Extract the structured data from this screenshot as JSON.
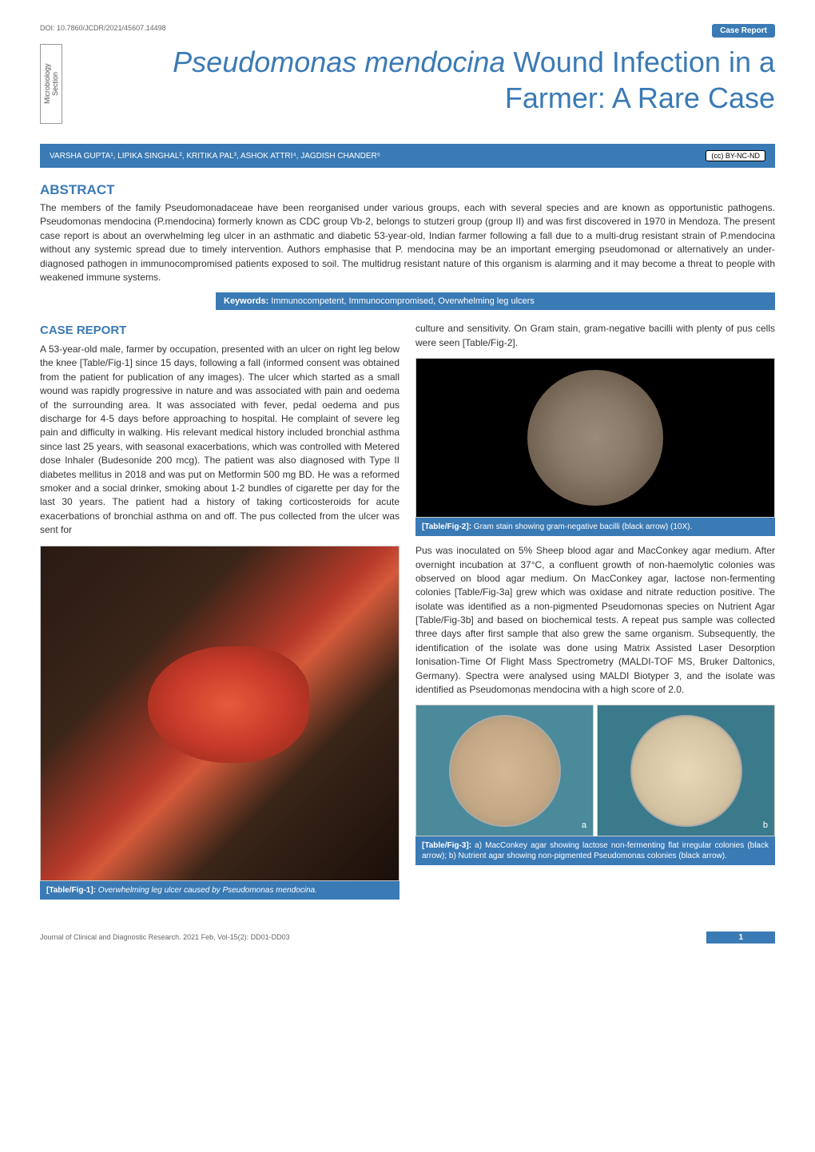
{
  "colors": {
    "accent": "#3a7ab5",
    "text": "#333333",
    "muted": "#666666",
    "bg": "#ffffff"
  },
  "typography": {
    "body_fontsize": 12,
    "title_fontsize": 36,
    "heading_fontsize": 17,
    "caption_fontsize": 10
  },
  "header": {
    "doi": "DOI: 10.7860/JCDR/2021/45607.14498",
    "badge": "Case Report",
    "section_label": "Microbiology Section",
    "title_italic": "Pseudomonas mendocina",
    "title_rest": " Wound Infection in a Farmer: A Rare Case"
  },
  "authors": {
    "line": "VARSHA GUPTA¹, LIPIKA SINGHAL², KRITIKA PAL³, ASHOK ATTRI⁴, JAGDISH CHANDER⁵",
    "license": "(cc) BY-NC-ND"
  },
  "abstract": {
    "heading": "ABSTRACT",
    "text": "The members of the family Pseudomonadaceae have been reorganised under various groups, each with several species and are known as opportunistic pathogens. Pseudomonas mendocina (P.mendocina) formerly known as CDC group Vb-2, belongs to stutzeri group (group II) and was first discovered in 1970 in Mendoza. The present case report is about an overwhelming leg ulcer in an asthmatic and diabetic 53-year-old, Indian farmer following a fall due to a multi-drug resistant strain of P.mendocina without any systemic spread due to timely intervention. Authors emphasise that P. mendocina may be an important emerging pseudomonad or alternatively an under-diagnosed pathogen in immunocompromised patients exposed to soil. The multidrug resistant nature of this organism is alarming and it may become a threat to people with weakened immune systems."
  },
  "keywords": {
    "label": "Keywords:",
    "text": " Immunocompetent, Immunocompromised, Overwhelming leg ulcers"
  },
  "case_report": {
    "heading": "CASE REPORT",
    "col1_p1": "A 53-year-old male, farmer by occupation, presented with an ulcer on right leg below the knee [Table/Fig-1] since 15 days, following a fall (informed consent was obtained from the patient for publication of any images). The ulcer which started as a small wound was rapidly progressive in nature and was associated with pain and oedema of the surrounding area. It was associated with fever, pedal oedema and pus discharge for 4-5 days before approaching to hospital. He complaint of severe leg pain and difficulty in walking. His relevant medical history included bronchial asthma since last 25 years, with seasonal exacerbations, which was controlled with Metered dose Inhaler (Budesonide 200 mcg). The patient was also diagnosed with Type II diabetes mellitus in 2018 and was put on Metformin 500 mg BD. He was a reformed smoker and a social drinker, smoking about 1-2 bundles of cigarette per day for the last 30 years. The patient had a history of taking corticosteroids for acute exacerbations of bronchial asthma on and off. The pus collected from the ulcer was sent for",
    "col2_p1": "culture and sensitivity. On Gram stain, gram-negative bacilli with plenty of pus cells were seen [Table/Fig-2].",
    "col2_p2": "Pus was inoculated on 5% Sheep blood agar and MacConkey agar medium. After overnight incubation at 37°C, a confluent growth of non-haemolytic colonies was observed on blood agar medium. On MacConkey agar, lactose non-fermenting colonies [Table/Fig-3a] grew which was oxidase and nitrate reduction positive. The isolate was identified as a non-pigmented Pseudomonas species on Nutrient Agar [Table/Fig-3b] and based on biochemical tests. A repeat pus sample was collected three days after first sample that also grew the same organism. Subsequently, the identification of the isolate was done using Matrix Assisted Laser Desorption Ionisation-Time Of Flight Mass Spectrometry (MALDI-TOF MS, Bruker Daltonics, Germany). Spectra were analysed using MALDI Biotyper 3, and the isolate was identified as Pseudomonas mendocina with a high score of 2.0."
  },
  "figures": {
    "fig1": {
      "tag": "[Table/Fig-1]:",
      "caption": " Overwhelming leg ulcer caused by Pseudomonas mendocina."
    },
    "fig2": {
      "tag": "[Table/Fig-2]:",
      "caption": " Gram stain showing gram-negative bacilli (black arrow) (10X)."
    },
    "fig3": {
      "tag": "[Table/Fig-3]:",
      "caption": " a) MacConkey agar showing lactose non-fermenting flat irregular colonies (black arrow); b) Nutrient agar showing non-pigmented Pseudomonas colonies (black arrow).",
      "label_a": "a",
      "label_b": "b"
    }
  },
  "footer": {
    "citation": "Journal of Clinical and Diagnostic Research. 2021 Feb, Vol-15(2): DD01-DD03",
    "page": "1"
  }
}
